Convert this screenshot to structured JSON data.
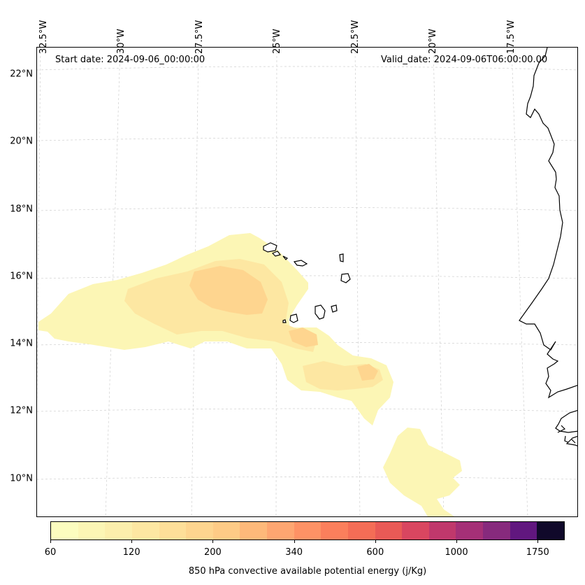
{
  "map": {
    "start_date": "Start date: 2024-09-06_00:00:00",
    "valid_date": "Valid_date: 2024-09-06T06:00:00.00",
    "lat_labels": [
      "22°N",
      "20°N",
      "18°N",
      "16°N",
      "14°N",
      "12°N",
      "10°N"
    ],
    "lon_labels": [
      "32.5°W",
      "30°W",
      "27.5°W",
      "25°W",
      "22.5°W",
      "20°W",
      "17.5°W"
    ],
    "gridlines": true,
    "features": [
      "African coastline",
      "Cape Verde islands"
    ]
  },
  "colorbar": {
    "title": "850 hPa convective available potential energy (j/Kg)",
    "tick_labels": [
      "60",
      "120",
      "200",
      "340",
      "600",
      "1000",
      "1750"
    ],
    "colors": [
      "#fcfdbf",
      "#fcf6b5",
      "#fcefac",
      "#fde7a2",
      "#fedf99",
      "#fed58f",
      "#fecb86",
      "#feb97a",
      "#fea671",
      "#fe9265",
      "#fb7f5c",
      "#f46d56",
      "#e95a56",
      "#d94660",
      "#c0386c",
      "#a53077",
      "#872a7d",
      "#61177f",
      "#10092a"
    ]
  }
}
